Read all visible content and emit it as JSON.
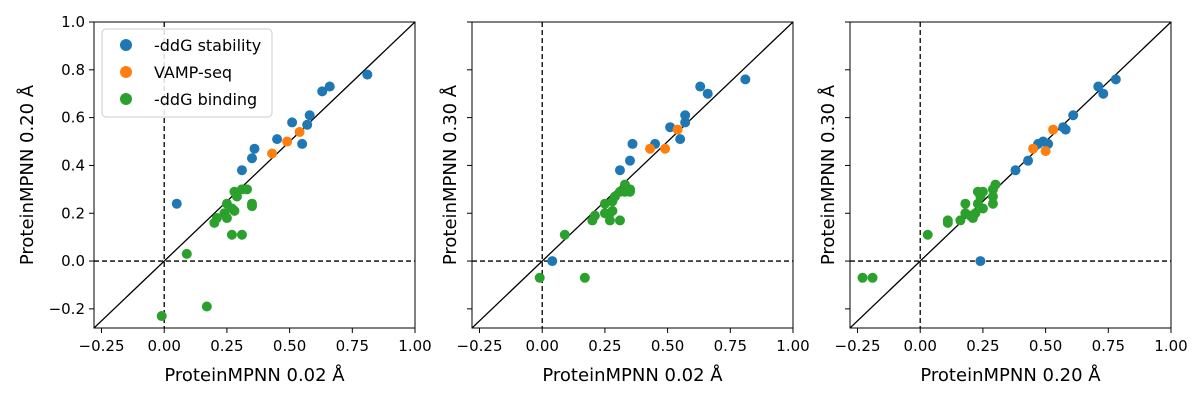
{
  "chart_data": [
    {
      "type": "scatter",
      "xlabel": "ProteinMPNN 0.02 Å",
      "ylabel": "ProteinMPNN 0.20 Å",
      "xlim": [
        -0.28,
        1.0
      ],
      "ylim": [
        -0.28,
        1.0
      ],
      "xticks": [
        "−0.25",
        "0.00",
        "0.25",
        "0.50",
        "0.75",
        "1.00"
      ],
      "yticks": [
        "−0.2",
        "0.0",
        "0.2",
        "0.4",
        "0.6",
        "0.8",
        "1.0"
      ],
      "diagonal": true,
      "zero_lines": true,
      "legend": {
        "position": "top-left",
        "entries": [
          "-ddG stability",
          "VAMP-seq",
          "-ddG binding"
        ]
      },
      "series": [
        {
          "name": "-ddG stability",
          "color": "#1f77b4",
          "points": [
            [
              0.05,
              0.24
            ],
            [
              0.31,
              0.38
            ],
            [
              0.35,
              0.43
            ],
            [
              0.36,
              0.47
            ],
            [
              0.45,
              0.51
            ],
            [
              0.51,
              0.58
            ],
            [
              0.55,
              0.49
            ],
            [
              0.57,
              0.57
            ],
            [
              0.58,
              0.61
            ],
            [
              0.63,
              0.71
            ],
            [
              0.66,
              0.73
            ],
            [
              0.81,
              0.78
            ]
          ]
        },
        {
          "name": "VAMP-seq",
          "color": "#ff7f0e",
          "points": [
            [
              0.43,
              0.45
            ],
            [
              0.49,
              0.5
            ],
            [
              0.54,
              0.54
            ]
          ]
        },
        {
          "name": "-ddG binding",
          "color": "#2ca02c",
          "points": [
            [
              -0.01,
              -0.23
            ],
            [
              0.09,
              0.03
            ],
            [
              0.17,
              -0.19
            ],
            [
              0.2,
              0.16
            ],
            [
              0.21,
              0.18
            ],
            [
              0.24,
              0.2
            ],
            [
              0.25,
              0.18
            ],
            [
              0.25,
              0.24
            ],
            [
              0.27,
              0.22
            ],
            [
              0.27,
              0.11
            ],
            [
              0.28,
              0.21
            ],
            [
              0.28,
              0.29
            ],
            [
              0.29,
              0.27
            ],
            [
              0.31,
              0.11
            ],
            [
              0.31,
              0.3
            ],
            [
              0.33,
              0.3
            ],
            [
              0.35,
              0.23
            ],
            [
              0.35,
              0.24
            ]
          ]
        }
      ]
    },
    {
      "type": "scatter",
      "xlabel": "ProteinMPNN 0.02 Å",
      "ylabel": "ProteinMPNN 0.30 Å",
      "xlim": [
        -0.28,
        1.0
      ],
      "ylim": [
        -0.28,
        1.0
      ],
      "xticks": [
        "−0.25",
        "0.00",
        "0.25",
        "0.50",
        "0.75",
        "1.00"
      ],
      "yticks": [],
      "diagonal": true,
      "zero_lines": true,
      "series": [
        {
          "name": "-ddG stability",
          "color": "#1f77b4",
          "points": [
            [
              0.04,
              0.0
            ],
            [
              0.31,
              0.38
            ],
            [
              0.35,
              0.42
            ],
            [
              0.36,
              0.49
            ],
            [
              0.45,
              0.49
            ],
            [
              0.51,
              0.56
            ],
            [
              0.55,
              0.51
            ],
            [
              0.57,
              0.58
            ],
            [
              0.57,
              0.61
            ],
            [
              0.63,
              0.73
            ],
            [
              0.66,
              0.7
            ],
            [
              0.81,
              0.76
            ]
          ]
        },
        {
          "name": "VAMP-seq",
          "color": "#ff7f0e",
          "points": [
            [
              0.43,
              0.47
            ],
            [
              0.49,
              0.47
            ],
            [
              0.54,
              0.55
            ]
          ]
        },
        {
          "name": "-ddG binding",
          "color": "#2ca02c",
          "points": [
            [
              -0.01,
              -0.07
            ],
            [
              0.09,
              0.11
            ],
            [
              0.17,
              -0.07
            ],
            [
              0.2,
              0.17
            ],
            [
              0.21,
              0.19
            ],
            [
              0.25,
              0.24
            ],
            [
              0.25,
              0.2
            ],
            [
              0.27,
              0.17
            ],
            [
              0.27,
              0.2
            ],
            [
              0.28,
              0.21
            ],
            [
              0.28,
              0.25
            ],
            [
              0.29,
              0.27
            ],
            [
              0.31,
              0.17
            ],
            [
              0.31,
              0.29
            ],
            [
              0.33,
              0.32
            ],
            [
              0.33,
              0.29
            ],
            [
              0.35,
              0.29
            ],
            [
              0.35,
              0.3
            ]
          ]
        }
      ]
    },
    {
      "type": "scatter",
      "xlabel": "ProteinMPNN 0.20 Å",
      "ylabel": "ProteinMPNN 0.30 Å",
      "xlim": [
        -0.28,
        1.0
      ],
      "ylim": [
        -0.28,
        1.0
      ],
      "xticks": [
        "−0.25",
        "0.00",
        "0.25",
        "0.50",
        "0.75",
        "1.00"
      ],
      "yticks": [],
      "diagonal": true,
      "zero_lines": true,
      "series": [
        {
          "name": "-ddG stability",
          "color": "#1f77b4",
          "points": [
            [
              0.24,
              0.0
            ],
            [
              0.38,
              0.38
            ],
            [
              0.43,
              0.42
            ],
            [
              0.47,
              0.49
            ],
            [
              0.49,
              0.5
            ],
            [
              0.51,
              0.49
            ],
            [
              0.57,
              0.56
            ],
            [
              0.58,
              0.55
            ],
            [
              0.61,
              0.61
            ],
            [
              0.71,
              0.73
            ],
            [
              0.73,
              0.7
            ],
            [
              0.78,
              0.76
            ]
          ]
        },
        {
          "name": "VAMP-seq",
          "color": "#ff7f0e",
          "points": [
            [
              0.45,
              0.47
            ],
            [
              0.5,
              0.46
            ],
            [
              0.53,
              0.55
            ]
          ]
        },
        {
          "name": "-ddG binding",
          "color": "#2ca02c",
          "points": [
            [
              -0.23,
              -0.07
            ],
            [
              -0.19,
              -0.07
            ],
            [
              0.03,
              0.11
            ],
            [
              0.11,
              0.17
            ],
            [
              0.11,
              0.16
            ],
            [
              0.16,
              0.17
            ],
            [
              0.18,
              0.24
            ],
            [
              0.18,
              0.2
            ],
            [
              0.2,
              0.19
            ],
            [
              0.21,
              0.18
            ],
            [
              0.22,
              0.2
            ],
            [
              0.23,
              0.29
            ],
            [
              0.23,
              0.24
            ],
            [
              0.24,
              0.27
            ],
            [
              0.25,
              0.22
            ],
            [
              0.25,
              0.29
            ],
            [
              0.29,
              0.27
            ],
            [
              0.29,
              0.3
            ],
            [
              0.29,
              0.24
            ],
            [
              0.3,
              0.32
            ]
          ]
        }
      ]
    }
  ]
}
